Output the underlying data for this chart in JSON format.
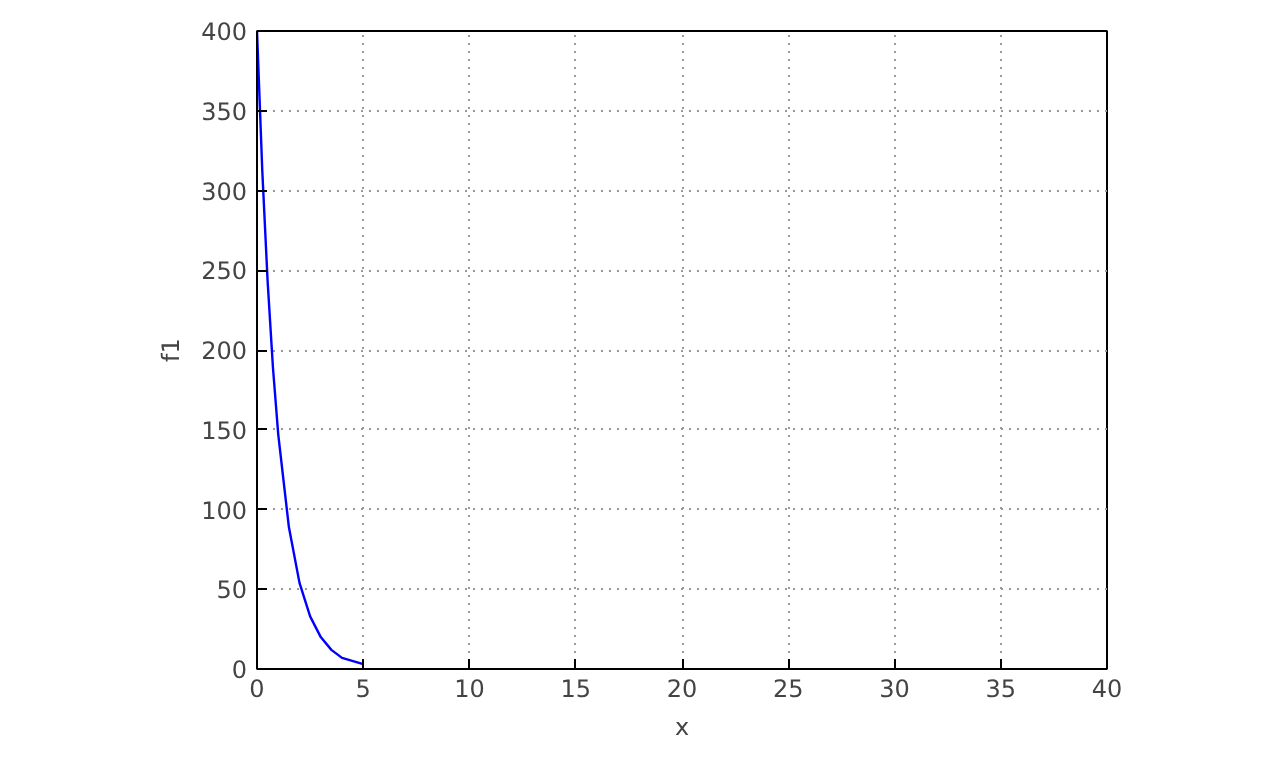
{
  "chart_data": {
    "type": "line",
    "xlabel": "x",
    "ylabel": "f1",
    "x": [
      0,
      0.25,
      0.5,
      0.75,
      1,
      1.5,
      2,
      2.5,
      3,
      3.5,
      4,
      5
    ],
    "series": [
      {
        "color": "#0000ff",
        "values": [
          400,
          312,
          243,
          189,
          147,
          89,
          54,
          33,
          20,
          12,
          7,
          3
        ]
      }
    ],
    "xlim": [
      0,
      40
    ],
    "ylim": [
      0,
      400
    ],
    "xticks": [
      0,
      5,
      10,
      15,
      20,
      25,
      30,
      35,
      40
    ],
    "yticks": [
      0,
      50,
      100,
      150,
      200,
      250,
      300,
      350,
      400
    ],
    "grid": true,
    "line_style": "solid",
    "marker": "none"
  }
}
